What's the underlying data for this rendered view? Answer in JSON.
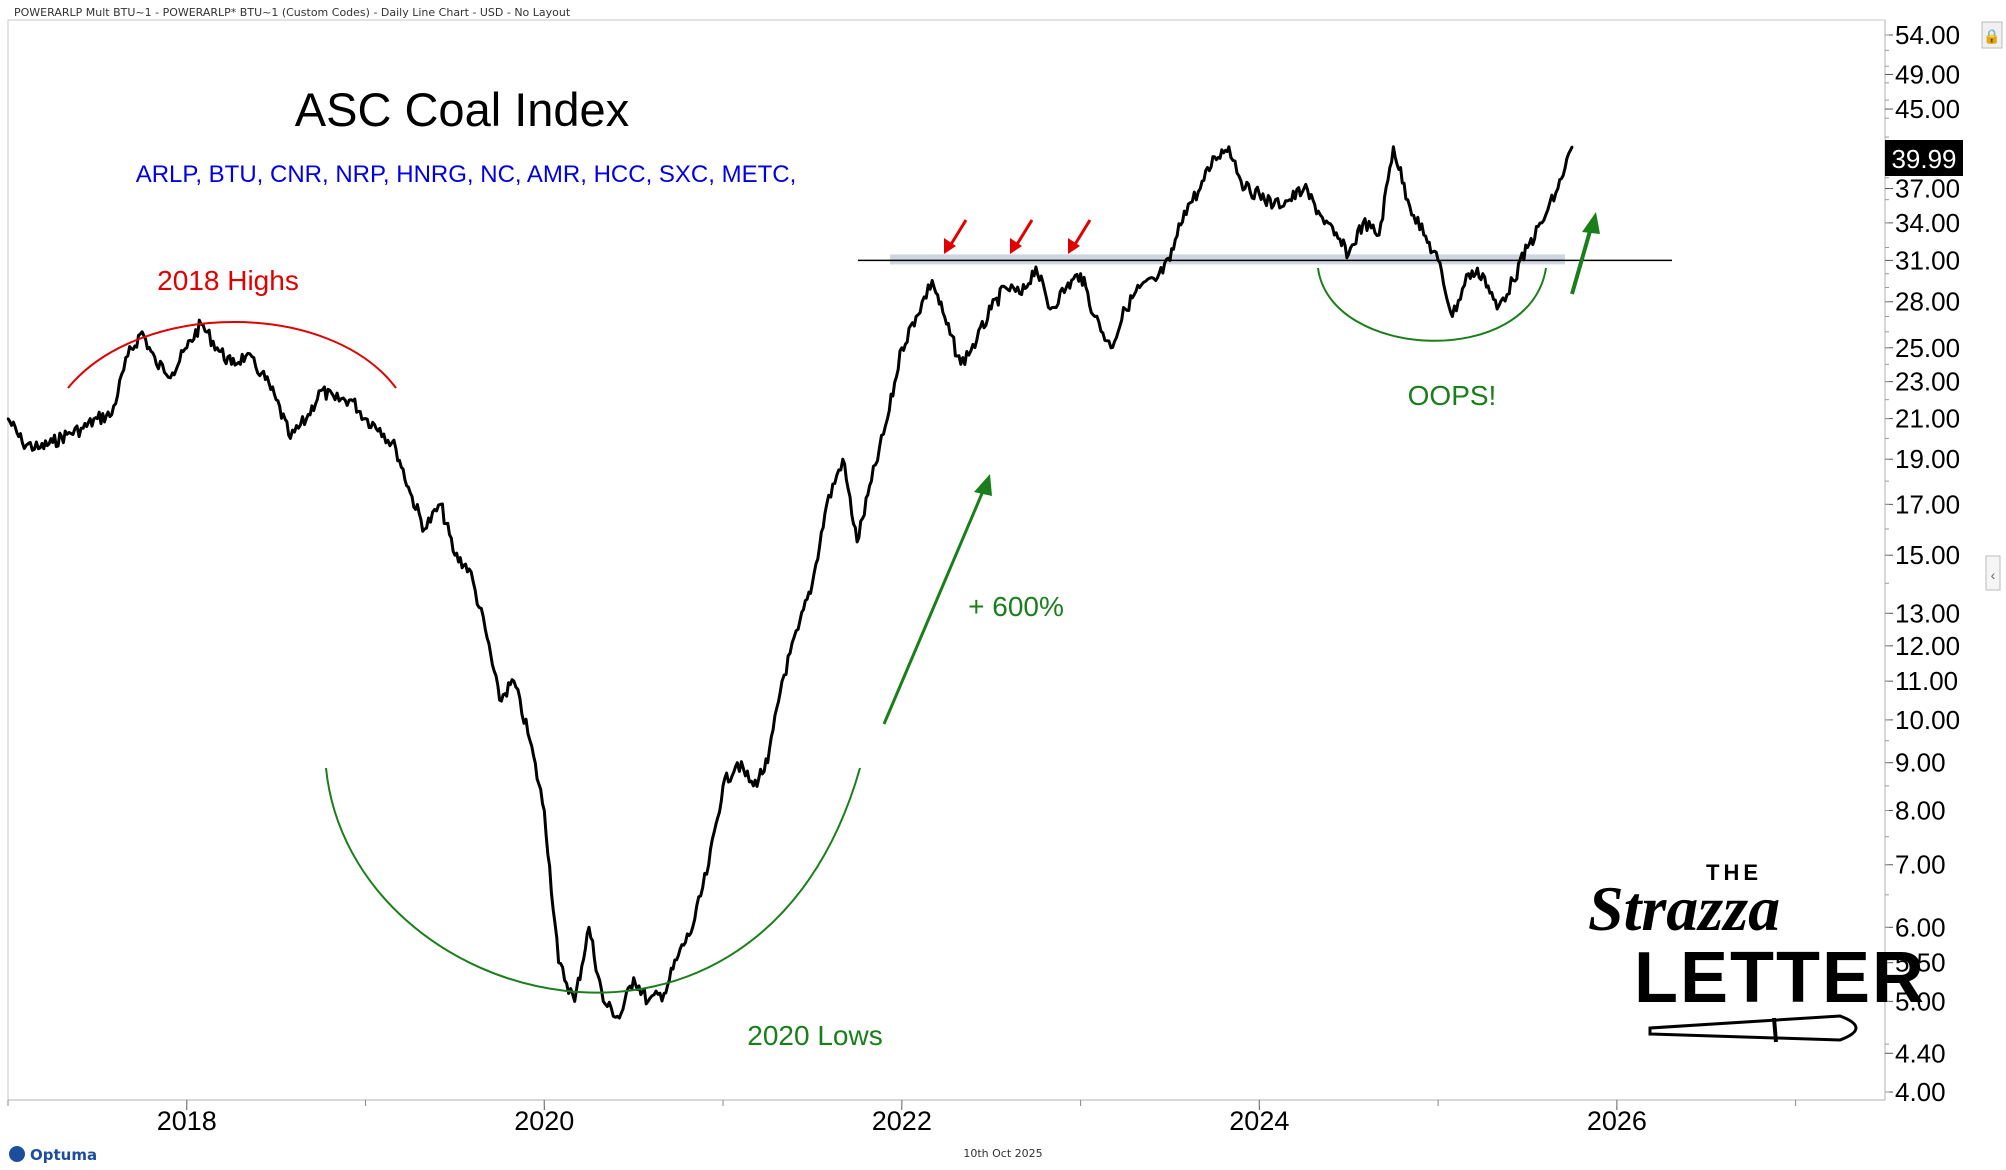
{
  "window": {
    "title": "POWERARLP Mult BTU~1 - POWERARLP* BTU~1 (Custom Codes) - Daily Line Chart - USD - No Layout",
    "footer_date": "10th Oct 2025",
    "footer_logo": "Optuma",
    "last_price": "39.99"
  },
  "annotations": {
    "components": "ARLP, BTU, CNR, NRP,  HNRG, NC, AMR, HCC, SXC, METC,",
    "highs_label": "2018 Highs",
    "lows_label": "2020 Lows",
    "gain_label": "+ 600%",
    "oops_label": "OOPS!",
    "logo_the": "THE",
    "logo_strazza": "Strazza",
    "logo_letter": "LETTER"
  },
  "colors": {
    "series": "#000000",
    "red": "#e00000",
    "green": "#1a7f1a",
    "blue_text": "#0000e6",
    "resistance_band": "#aab4c8"
  },
  "chart_data": {
    "type": "line",
    "title": "ASC Coal Index",
    "xlabel": "",
    "ylabel": "",
    "scale": "log",
    "ylim": [
      4.0,
      56.0
    ],
    "xlim": [
      2017.0,
      2027.5
    ],
    "grid": false,
    "x_ticks": [
      "2018",
      "2020",
      "2022",
      "2024",
      "2026"
    ],
    "y_ticks": [
      "54.00",
      "49.00",
      "45.00",
      "37.00",
      "34.00",
      "31.00",
      "28.00",
      "25.00",
      "23.00",
      "21.00",
      "19.00",
      "17.00",
      "15.00",
      "13.00",
      "12.00",
      "11.00",
      "10.00",
      "9.00",
      "8.00",
      "7.00",
      "6.00",
      "5.50",
      "5.00",
      "4.40",
      "4.00"
    ],
    "resistance_level": 31.0,
    "series": [
      {
        "x": [
          2017.0,
          2017.08,
          2017.17,
          2017.25,
          2017.33,
          2017.42,
          2017.5,
          2017.58,
          2017.67,
          2017.75,
          2017.83,
          2017.92,
          2018.0,
          2018.08,
          2018.17,
          2018.25,
          2018.33,
          2018.42,
          2018.5,
          2018.58,
          2018.67,
          2018.75,
          2018.83,
          2018.92,
          2019.0,
          2019.08,
          2019.17,
          2019.25,
          2019.33,
          2019.42,
          2019.5,
          2019.58,
          2019.67,
          2019.75,
          2019.83,
          2019.92,
          2020.0,
          2020.08,
          2020.17,
          2020.25,
          2020.33,
          2020.42,
          2020.5,
          2020.58,
          2020.67,
          2020.75,
          2020.83,
          2020.92,
          2021.0,
          2021.08,
          2021.17,
          2021.25,
          2021.33,
          2021.42,
          2021.5,
          2021.58,
          2021.67,
          2021.75,
          2021.83,
          2021.92,
          2022.0,
          2022.08,
          2022.17,
          2022.25,
          2022.33,
          2022.42,
          2022.5,
          2022.58,
          2022.67,
          2022.75,
          2022.83,
          2022.92,
          2023.0,
          2023.08,
          2023.17,
          2023.25,
          2023.33,
          2023.42,
          2023.5,
          2023.58,
          2023.67,
          2023.75,
          2023.83,
          2023.92,
          2024.0,
          2024.08,
          2024.17,
          2024.25,
          2024.33,
          2024.42,
          2024.5,
          2024.58,
          2024.67,
          2024.75,
          2024.83,
          2024.92,
          2025.0,
          2025.08,
          2025.17,
          2025.25,
          2025.33,
          2025.42,
          2025.5,
          2025.58,
          2025.67,
          2025.75
        ],
        "values": [
          21.0,
          19.8,
          19.5,
          19.8,
          20.2,
          20.5,
          21.0,
          21.2,
          24.5,
          26.0,
          24.0,
          23.5,
          25.0,
          26.5,
          25.0,
          24.0,
          24.5,
          23.5,
          22.0,
          20.0,
          21.0,
          22.5,
          22.0,
          22.0,
          21.0,
          20.5,
          19.5,
          17.5,
          16.0,
          17.0,
          15.0,
          14.5,
          12.5,
          10.5,
          11.0,
          9.5,
          8.0,
          5.5,
          5.0,
          6.0,
          5.0,
          4.8,
          5.3,
          5.0,
          5.1,
          5.6,
          6.0,
          7.0,
          8.5,
          9.0,
          8.5,
          9.0,
          11.0,
          12.5,
          14.0,
          17.0,
          19.0,
          15.5,
          18.0,
          21.0,
          25.0,
          27.0,
          29.5,
          26.5,
          24.0,
          25.5,
          27.5,
          29.0,
          28.5,
          30.5,
          27.5,
          29.0,
          30.0,
          27.0,
          25.0,
          27.5,
          29.0,
          29.5,
          31.0,
          35.0,
          37.0,
          40.0,
          41.0,
          37.0,
          36.5,
          35.5,
          36.0,
          37.0,
          35.0,
          33.0,
          31.5,
          34.0,
          33.0,
          41.0,
          36.0,
          33.0,
          31.0,
          27.0,
          30.0,
          30.0,
          27.5,
          29.5,
          32.0,
          34.0,
          37.0,
          41.0
        ]
      }
    ]
  }
}
